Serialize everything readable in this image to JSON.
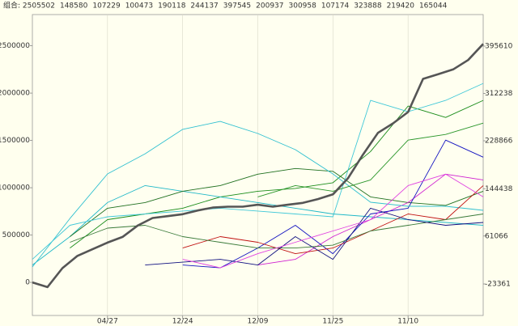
{
  "chart_data": {
    "type": "line",
    "xlim": [
      0,
      120
    ],
    "xticks": [
      {
        "value": 20,
        "label": "04/27"
      },
      {
        "value": 40,
        "label": "12/24"
      },
      {
        "value": 60,
        "label": "12/09"
      },
      {
        "value": 80,
        "label": "11/25"
      },
      {
        "value": 100,
        "label": "11/10"
      }
    ],
    "ylim": [
      -350000,
      2830000
    ],
    "yticks": [
      0,
      500000,
      1000000,
      1500000,
      2000000,
      2500000
    ],
    "y2lim": [
      -78900,
      451200
    ],
    "y2ticks": [
      -23361,
      61066,
      144438,
      228866,
      312238,
      395610
    ],
    "grid": true,
    "series": [
      {
        "name": "组合: 2505502",
        "color": "#555555",
        "x": [
          0,
          4,
          8,
          12,
          16,
          20,
          24,
          28,
          32,
          36,
          40,
          44,
          48,
          52,
          56,
          60,
          64,
          68,
          72,
          76,
          80,
          84,
          88,
          92,
          96,
          100,
          104,
          108,
          112,
          116,
          120
        ],
        "values": [
          0,
          -50000,
          150000,
          280000,
          350000,
          420000,
          480000,
          600000,
          680000,
          700000,
          720000,
          760000,
          790000,
          800000,
          800000,
          820000,
          800000,
          820000,
          840000,
          880000,
          930000,
          1100000,
          1350000,
          1580000,
          1680000,
          1800000,
          2150000,
          2200000,
          2250000,
          2350000,
          2520000
        ]
      },
      {
        "name": "148580",
        "color": "#1a8c1a",
        "axis": "y2",
        "x": [
          0,
          10,
          20,
          30,
          40,
          50,
          60,
          70,
          80,
          90,
          100,
          110,
          120
        ],
        "values": [
          null,
          40000,
          90000,
          100000,
          110000,
          130000,
          140000,
          145000,
          155000,
          210000,
          290000,
          270000,
          300000
        ]
      },
      {
        "name": "107229",
        "color": "#20b8c8",
        "axis": "y2",
        "x": [
          0,
          10,
          20,
          30,
          40,
          50,
          60,
          70,
          80,
          90,
          100,
          110,
          120
        ],
        "values": [
          10000,
          60000,
          120000,
          150000,
          140000,
          130000,
          120000,
          110000,
          100000,
          95000,
          90000,
          85000,
          80000
        ]
      },
      {
        "name": "100473",
        "color": "#207020",
        "axis": "y2",
        "x": [
          0,
          10,
          20,
          30,
          40,
          50,
          60,
          70,
          80,
          90,
          100,
          110,
          120
        ],
        "values": [
          null,
          60000,
          110000,
          120000,
          140000,
          150000,
          170000,
          180000,
          175000,
          130000,
          120000,
          115000,
          140000
        ]
      },
      {
        "name": "190118",
        "color": "#d020d0",
        "axis": "y2",
        "x": [
          0,
          10,
          20,
          30,
          40,
          50,
          60,
          70,
          80,
          90,
          100,
          110,
          120
        ],
        "values": [
          null,
          null,
          null,
          null,
          null,
          null,
          10000,
          20000,
          60000,
          90000,
          120000,
          170000,
          160000
        ]
      },
      {
        "name": "244137",
        "color": "#1010c0",
        "axis": "y2",
        "x": [
          0,
          10,
          20,
          30,
          40,
          50,
          60,
          70,
          80,
          90,
          100,
          110,
          120
        ],
        "values": [
          null,
          null,
          null,
          null,
          10000,
          5000,
          40000,
          80000,
          30000,
          100000,
          110000,
          230000,
          200000
        ]
      },
      {
        "name": "397545",
        "color": "#30c0d0",
        "axis": "y2",
        "x": [
          0,
          10,
          20,
          30,
          40,
          50,
          60,
          70,
          80,
          90,
          100,
          110,
          120
        ],
        "values": [
          6600,
          92000,
          170500,
          206000,
          249000,
          263000,
          241700,
          213200,
          170500,
          120600,
          113500,
          113500,
          106300
        ]
      },
      {
        "name": "200937",
        "color": "#c01010",
        "axis": "y2",
        "x": [
          0,
          10,
          20,
          30,
          40,
          50,
          60,
          70,
          80,
          90,
          100,
          110,
          120
        ],
        "values": [
          null,
          null,
          null,
          null,
          40000,
          60000,
          50000,
          30000,
          40000,
          70000,
          100000,
          90000,
          150000
        ]
      },
      {
        "name": "300958",
        "color": "#3a7a3a",
        "axis": "y2",
        "x": [
          0,
          10,
          20,
          30,
          40,
          50,
          60,
          70,
          80,
          90,
          100,
          110,
          120
        ],
        "values": [
          null,
          50000,
          75000,
          80000,
          60000,
          50000,
          40000,
          40000,
          45000,
          70000,
          80000,
          90000,
          100000
        ]
      },
      {
        "name": "107174",
        "color": "#101080",
        "axis": "y2",
        "x": [
          0,
          10,
          20,
          30,
          40,
          50,
          60,
          70,
          80,
          90,
          100,
          110,
          120
        ],
        "values": [
          null,
          null,
          null,
          10000,
          15000,
          20000,
          10000,
          60000,
          20000,
          110000,
          90000,
          80000,
          85000
        ]
      },
      {
        "name": "323888",
        "color": "#40c8d8",
        "axis": "y2",
        "x": [
          0,
          10,
          20,
          30,
          40,
          50,
          60,
          70,
          80,
          90,
          100,
          110,
          120
        ],
        "values": [
          20000,
          80000,
          95000,
          100000,
          105000,
          110000,
          105000,
          100000,
          95000,
          300000,
          280000,
          300000,
          330000
        ]
      },
      {
        "name": "219420",
        "color": "#2a962a",
        "axis": "y2",
        "x": [
          0,
          10,
          20,
          30,
          40,
          50,
          60,
          70,
          80,
          90,
          100,
          110,
          120
        ],
        "values": [
          null,
          null,
          null,
          null,
          null,
          null,
          130000,
          150000,
          140000,
          160000,
          230000,
          240000,
          260000
        ]
      },
      {
        "name": "165044",
        "color": "#e040e0",
        "axis": "y2",
        "x": [
          0,
          10,
          20,
          30,
          40,
          50,
          60,
          70,
          80,
          90,
          100,
          110,
          120
        ],
        "values": [
          null,
          null,
          null,
          null,
          20000,
          5000,
          30000,
          50000,
          70000,
          90000,
          150000,
          170000,
          130000
        ]
      }
    ]
  }
}
